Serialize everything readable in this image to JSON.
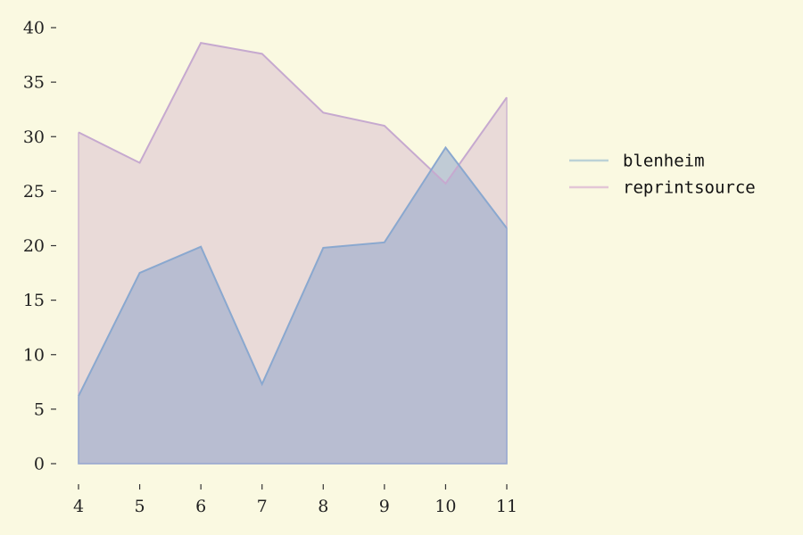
{
  "chart_data": {
    "type": "area",
    "title": "",
    "xlabel": "",
    "ylabel": "",
    "x": [
      4,
      5,
      6,
      7,
      8,
      9,
      10,
      11
    ],
    "xlim": [
      4,
      11
    ],
    "ylim": [
      0,
      40
    ],
    "x_ticks": [
      "4",
      "5",
      "6",
      "7",
      "8",
      "9",
      "10",
      "11"
    ],
    "y_ticks": [
      "0",
      "5",
      "10",
      "15",
      "20",
      "25",
      "30",
      "35",
      "40"
    ],
    "grid": false,
    "stacked": false,
    "legend_position": "right",
    "series": [
      {
        "name": "blenheim",
        "values": [
          6.2,
          17.5,
          19.9,
          7.3,
          19.8,
          20.3,
          29.0,
          21.6
        ],
        "line_color": "#8aa8cf",
        "fill_color": "#8fa5cc",
        "fill_opacity": 0.55,
        "legend_color": "#bcd2d6"
      },
      {
        "name": "reprintsource",
        "values": [
          30.4,
          27.6,
          38.6,
          37.6,
          32.2,
          31.0,
          25.7,
          33.6
        ],
        "line_color": "#c6a9cf",
        "fill_color": "#d4b4cf",
        "fill_opacity": 0.45,
        "legend_color": "#e3c6d6"
      }
    ]
  }
}
